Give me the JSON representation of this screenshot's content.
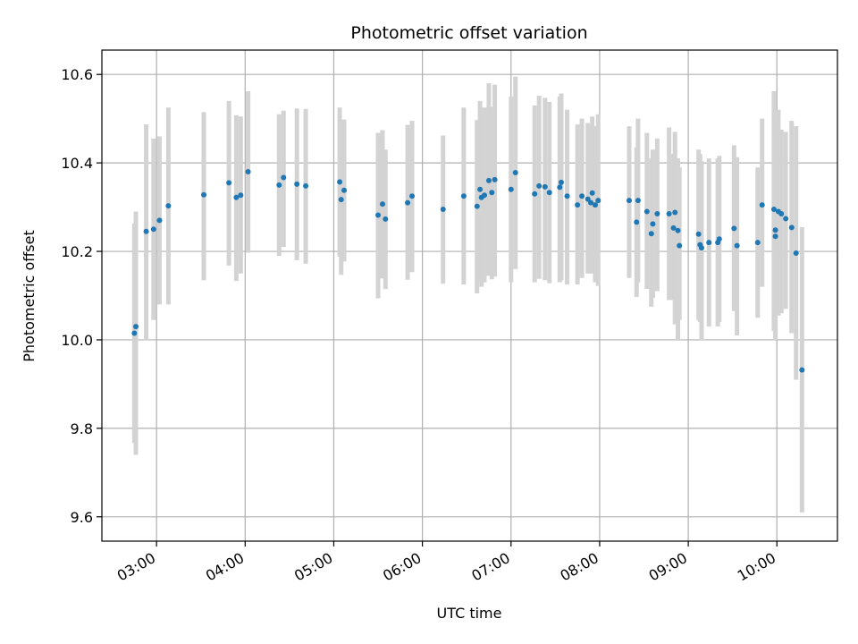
{
  "chart_data": {
    "type": "scatter",
    "title": "Photometric offset variation",
    "xlabel": "UTC time",
    "ylabel": "Photometric offset",
    "x_ticks": [
      "03:00",
      "04:00",
      "05:00",
      "06:00",
      "07:00",
      "08:00",
      "09:00",
      "10:00"
    ],
    "y_ticks": [
      "9.6",
      "9.8",
      "10.0",
      "10.2",
      "10.4",
      "10.6"
    ],
    "ylim": [
      9.545,
      10.655
    ],
    "xlim": [
      "02:23",
      "10:41"
    ],
    "grid": true,
    "colors": {
      "marker": "#1f77b4",
      "errorbar": "#d3d3d3",
      "grid": "#b0b0b0"
    },
    "series": [
      {
        "x": [
          "02:45",
          "02:46",
          "02:53",
          "02:58",
          "03:02",
          "03:08",
          "03:32",
          "03:49",
          "03:54",
          "03:57",
          "04:02",
          "04:23",
          "04:26",
          "04:35",
          "04:41",
          "05:04",
          "05:05",
          "05:07",
          "05:30",
          "05:33",
          "05:35",
          "05:50",
          "05:53",
          "06:14",
          "06:28",
          "06:37",
          "06:39",
          "06:40",
          "06:42",
          "06:45",
          "06:47",
          "06:49",
          "07:00",
          "07:03",
          "07:16",
          "07:19",
          "07:23",
          "07:26",
          "07:33",
          "07:34",
          "07:38",
          "07:45",
          "07:48",
          "07:52",
          "07:54",
          "07:55",
          "07:57",
          "07:59",
          "08:20",
          "08:25",
          "08:26",
          "08:32",
          "08:35",
          "08:36",
          "08:39",
          "08:47",
          "08:50",
          "08:51",
          "08:53",
          "08:54",
          "09:07",
          "09:08",
          "09:09",
          "09:14",
          "09:20",
          "09:21",
          "09:31",
          "09:33",
          "09:47",
          "09:50",
          "09:58",
          "09:59",
          "09:59",
          "10:01",
          "10:03",
          "10:06",
          "10:10",
          "10:13",
          "10:17"
        ],
        "y": [
          10.015,
          10.03,
          10.245,
          10.25,
          10.27,
          10.303,
          10.328,
          10.355,
          10.322,
          10.327,
          10.38,
          10.35,
          10.367,
          10.352,
          10.348,
          10.357,
          10.317,
          10.338,
          10.282,
          10.307,
          10.273,
          10.31,
          10.325,
          10.295,
          10.325,
          10.302,
          10.34,
          10.322,
          10.327,
          10.36,
          10.333,
          10.362,
          10.34,
          10.378,
          10.33,
          10.348,
          10.346,
          10.333,
          10.345,
          10.356,
          10.325,
          10.305,
          10.325,
          10.318,
          10.31,
          10.332,
          10.305,
          10.315,
          10.315,
          10.266,
          10.315,
          10.29,
          10.24,
          10.262,
          10.285,
          10.285,
          10.253,
          10.288,
          10.247,
          10.213,
          10.239,
          10.215,
          10.208,
          10.22,
          10.22,
          10.228,
          10.252,
          10.213,
          10.22,
          10.305,
          10.295,
          10.234,
          10.248,
          10.29,
          10.285,
          10.274,
          10.254,
          10.196,
          9.932
        ],
        "err_low": [
          9.767,
          9.74,
          10.0,
          10.045,
          10.08,
          10.08,
          10.135,
          10.168,
          10.133,
          10.15,
          10.197,
          10.19,
          10.21,
          10.18,
          10.172,
          10.188,
          10.147,
          10.177,
          10.094,
          10.139,
          10.115,
          10.136,
          10.153,
          10.127,
          10.125,
          10.105,
          10.132,
          10.12,
          10.13,
          10.145,
          10.137,
          10.143,
          10.13,
          10.16,
          10.13,
          10.138,
          10.135,
          10.128,
          10.13,
          10.135,
          10.125,
          10.125,
          10.14,
          10.15,
          10.15,
          10.155,
          10.13,
          10.122,
          10.14,
          10.097,
          10.13,
          10.115,
          10.075,
          10.095,
          10.11,
          10.09,
          10.09,
          10.035,
          10.0,
          10.045,
          10.045,
          10.04,
          10.0,
          10.03,
          10.03,
          10.04,
          10.065,
          10.01,
          10.05,
          10.12,
          10.02,
          10.0,
          10.01,
          10.055,
          10.06,
          10.07,
          10.015,
          9.91,
          9.61
        ],
        "err_high": [
          10.263,
          10.29,
          10.487,
          10.455,
          10.46,
          10.525,
          10.515,
          10.54,
          10.508,
          10.505,
          10.562,
          10.51,
          10.518,
          10.523,
          10.522,
          10.525,
          10.485,
          10.498,
          10.468,
          10.474,
          10.43,
          10.486,
          10.495,
          10.462,
          10.525,
          10.497,
          10.54,
          10.523,
          10.525,
          10.58,
          10.527,
          10.577,
          10.55,
          10.595,
          10.53,
          10.552,
          10.547,
          10.538,
          10.55,
          10.557,
          10.52,
          10.487,
          10.5,
          10.49,
          10.48,
          10.505,
          10.483,
          10.51,
          10.483,
          10.435,
          10.5,
          10.468,
          10.41,
          10.43,
          10.455,
          10.48,
          10.42,
          10.47,
          10.41,
          10.39,
          10.43,
          10.42,
          10.404,
          10.41,
          10.41,
          10.416,
          10.44,
          10.413,
          10.39,
          10.5,
          10.562,
          10.46,
          10.49,
          10.52,
          10.475,
          10.47,
          10.495,
          10.483,
          10.255
        ]
      }
    ]
  }
}
